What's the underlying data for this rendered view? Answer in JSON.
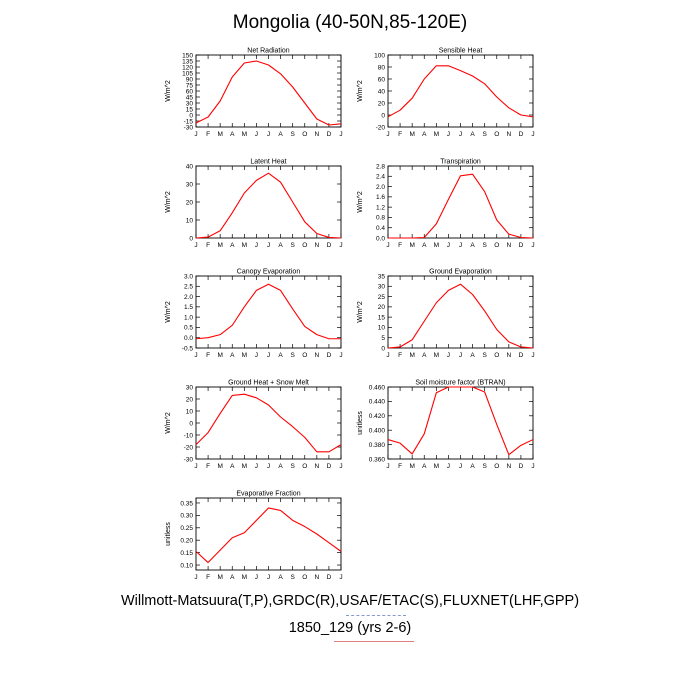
{
  "title": "Mongolia (40-50N,85-120E)",
  "footer": {
    "line1": "Willmott-Matsuura(T,P),GRDC(R),USAF/ETAC(S),FLUXNET(LHF,GPP)",
    "line2": "1850_129 (yrs 2-6)"
  },
  "colors": {
    "line": "#ff0000",
    "axis": "#000000",
    "background": "#ffffff"
  },
  "chart_data": [
    {
      "type": "line",
      "title": "Net Radiation",
      "ylabel": "W/m^2",
      "x": [
        "J",
        "F",
        "M",
        "A",
        "M",
        "J",
        "J",
        "A",
        "S",
        "O",
        "N",
        "D",
        "J"
      ],
      "ylim": [
        -30,
        150
      ],
      "yticks": [
        -30,
        -15,
        0,
        15,
        30,
        45,
        60,
        75,
        90,
        105,
        120,
        135,
        150
      ],
      "values": [
        -20,
        -5,
        35,
        95,
        130,
        135,
        125,
        103,
        70,
        30,
        -10,
        -25,
        -22
      ]
    },
    {
      "type": "line",
      "title": "Sensible Heat",
      "ylabel": "W/m^2",
      "x": [
        "J",
        "F",
        "M",
        "A",
        "M",
        "J",
        "J",
        "A",
        "S",
        "O",
        "N",
        "D",
        "J"
      ],
      "ylim": [
        -20,
        100
      ],
      "yticks": [
        -20,
        0,
        20,
        40,
        60,
        80,
        100
      ],
      "values": [
        -3,
        8,
        28,
        60,
        82,
        82,
        74,
        65,
        52,
        30,
        12,
        0,
        -3
      ]
    },
    {
      "type": "line",
      "title": "Latent Heat",
      "ylabel": "W/m^2",
      "x": [
        "J",
        "F",
        "M",
        "A",
        "M",
        "J",
        "J",
        "A",
        "S",
        "O",
        "N",
        "D",
        "J"
      ],
      "ylim": [
        0,
        40
      ],
      "yticks": [
        0,
        10,
        20,
        30,
        40
      ],
      "values": [
        0,
        0.5,
        4,
        14,
        25,
        32,
        36,
        31,
        20,
        9,
        2.5,
        0.3,
        0
      ]
    },
    {
      "type": "line",
      "title": "Transpiration",
      "ylabel": "W/m^2",
      "x": [
        "J",
        "F",
        "M",
        "A",
        "M",
        "J",
        "J",
        "A",
        "S",
        "O",
        "N",
        "D",
        "J"
      ],
      "ylim": [
        0,
        2.8
      ],
      "yticks": [
        0.0,
        0.4,
        0.8,
        1.2,
        1.6,
        2.0,
        2.4,
        2.8
      ],
      "ytick_labels": [
        "0.0",
        "0.4",
        "0.8",
        "1.2",
        "1.6",
        "2.0",
        "2.4",
        "2.8"
      ],
      "values": [
        0,
        0,
        0,
        0.02,
        0.55,
        1.5,
        2.42,
        2.48,
        1.8,
        0.7,
        0.15,
        0.02,
        0
      ]
    },
    {
      "type": "line",
      "title": "Canopy Evaporation",
      "ylabel": "W/m^2",
      "x": [
        "J",
        "F",
        "M",
        "A",
        "M",
        "J",
        "J",
        "A",
        "S",
        "O",
        "N",
        "D",
        "J"
      ],
      "ylim": [
        -0.5,
        3.0
      ],
      "yticks": [
        -0.5,
        0.0,
        0.5,
        1.0,
        1.5,
        2.0,
        2.5,
        3.0
      ],
      "ytick_labels": [
        "-0.5",
        "0.0",
        "0.5",
        "1.0",
        "1.5",
        "2.0",
        "2.5",
        "3.0"
      ],
      "values": [
        -0.05,
        0.0,
        0.15,
        0.6,
        1.5,
        2.3,
        2.6,
        2.3,
        1.4,
        0.55,
        0.15,
        -0.05,
        -0.05
      ]
    },
    {
      "type": "line",
      "title": "Ground Evaporation",
      "ylabel": "W/m^2",
      "x": [
        "J",
        "F",
        "M",
        "A",
        "M",
        "J",
        "J",
        "A",
        "S",
        "O",
        "N",
        "D",
        "J"
      ],
      "ylim": [
        0,
        35
      ],
      "yticks": [
        0,
        5,
        10,
        15,
        20,
        25,
        30,
        35
      ],
      "values": [
        0,
        0.5,
        4,
        13,
        22,
        28,
        31,
        26,
        18,
        9,
        3,
        0.5,
        0
      ]
    },
    {
      "type": "line",
      "title": "Ground Heat + Snow Melt",
      "ylabel": "W/m^2",
      "x": [
        "J",
        "F",
        "M",
        "A",
        "M",
        "J",
        "J",
        "A",
        "S",
        "O",
        "N",
        "D",
        "J"
      ],
      "ylim": [
        -30,
        30
      ],
      "yticks": [
        -30,
        -20,
        -10,
        0,
        10,
        20,
        30
      ],
      "values": [
        -18,
        -8,
        8,
        23,
        24,
        21,
        15,
        5,
        -3,
        -12,
        -24,
        -24,
        -18
      ]
    },
    {
      "type": "line",
      "title": "Soil moisture factor (BTRAN)",
      "ylabel": "unitless",
      "x": [
        "J",
        "F",
        "M",
        "A",
        "M",
        "J",
        "J",
        "A",
        "S",
        "O",
        "N",
        "D",
        "J"
      ],
      "ylim": [
        0.36,
        0.46
      ],
      "yticks": [
        0.36,
        0.38,
        0.4,
        0.42,
        0.44,
        0.46
      ],
      "ytick_labels": [
        "0.360",
        "0.380",
        "0.400",
        "0.420",
        "0.440",
        "0.460"
      ],
      "values": [
        0.387,
        0.382,
        0.367,
        0.395,
        0.452,
        0.46,
        0.46,
        0.46,
        0.453,
        0.408,
        0.366,
        0.379,
        0.387
      ]
    },
    {
      "type": "line",
      "title": "Evaporative Fraction",
      "ylabel": "unitless",
      "x": [
        "J",
        "F",
        "M",
        "A",
        "M",
        "J",
        "J",
        "A",
        "S",
        "O",
        "N",
        "D",
        "J"
      ],
      "ylim": [
        0.08,
        0.37
      ],
      "yticks": [
        0.1,
        0.15,
        0.2,
        0.25,
        0.3,
        0.35
      ],
      "ytick_labels": [
        "0.10",
        "0.15",
        "0.20",
        "0.25",
        "0.30",
        "0.35"
      ],
      "values": [
        0.155,
        0.11,
        0.16,
        0.21,
        0.23,
        0.28,
        0.33,
        0.32,
        0.28,
        0.255,
        0.225,
        0.19,
        0.155
      ]
    }
  ]
}
